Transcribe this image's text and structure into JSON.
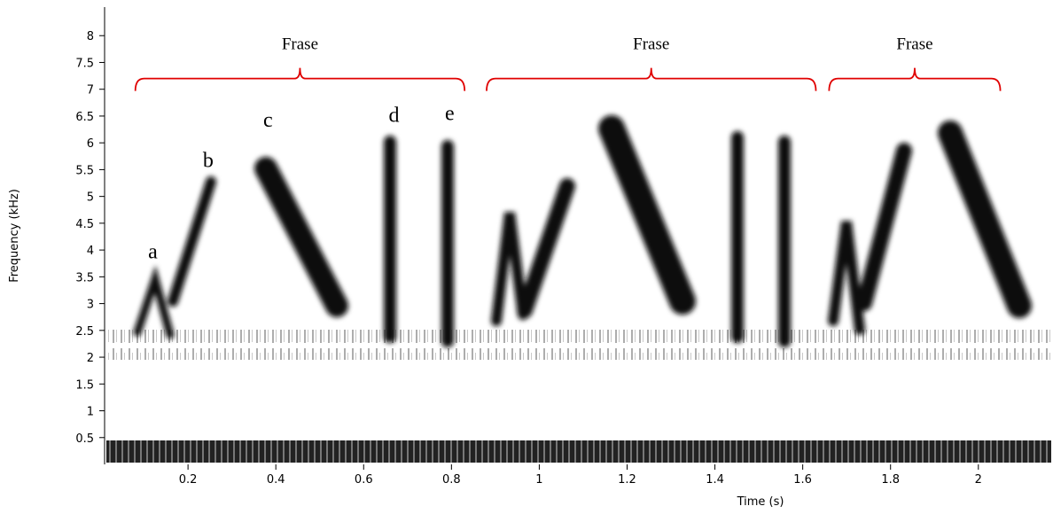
{
  "chart_data": {
    "type": "spectrogram",
    "x_label": "Time (s)",
    "y_label": "Frequency (kHz)",
    "xlim": [
      0.01,
      2.17
    ],
    "xticks": [
      0.2,
      0.4,
      0.6,
      0.8,
      1,
      1.2,
      1.4,
      1.6,
      1.8,
      2
    ],
    "ylim": [
      0,
      8.5
    ],
    "yticks": [
      0.5,
      1,
      1.5,
      2,
      2.5,
      3,
      3.5,
      4,
      4.5,
      5,
      5.5,
      6,
      6.5,
      7,
      7.5,
      8
    ],
    "bracket_color": "#e00000",
    "phrases": [
      {
        "label": "Frase",
        "start": 0.08,
        "end": 0.83
      },
      {
        "label": "Frase",
        "start": 0.88,
        "end": 1.63
      },
      {
        "label": "Frase",
        "start": 1.66,
        "end": 2.05
      }
    ],
    "syllables": [
      {
        "label": "a",
        "x": 0.12,
        "y": 3.98
      },
      {
        "label": "b",
        "x": 0.246,
        "y": 5.68
      },
      {
        "label": "c",
        "x": 0.382,
        "y": 6.43
      },
      {
        "label": "d",
        "x": 0.669,
        "y": 6.52
      },
      {
        "label": "e",
        "x": 0.796,
        "y": 6.56
      }
    ]
  }
}
